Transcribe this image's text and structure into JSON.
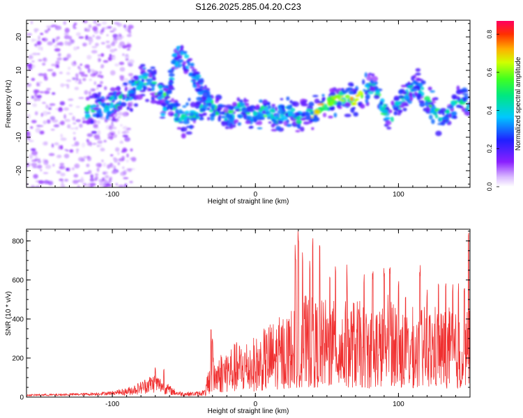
{
  "title": "S126.2025.285.04.20.C23",
  "colors": {
    "snr_line": "#f03030",
    "frame": "#000000",
    "spec_bg": "#ffffff"
  },
  "chart_data": [
    {
      "type": "heatmap",
      "name": "spectrogram",
      "title": "S126.2025.285.04.20.C23",
      "xlabel": "Height of straight line (km)",
      "ylabel": "Frequency (Hz)",
      "xlim": [
        -160,
        150
      ],
      "ylim": [
        -25,
        25
      ],
      "xticks": [
        -100,
        0,
        100
      ],
      "xtick_labels": [
        "-100",
        "0",
        "100"
      ],
      "yticks": [
        -20,
        -10,
        0,
        10,
        20
      ],
      "ytick_labels": [
        "-20",
        "-10",
        "0",
        "10",
        "20"
      ],
      "ridge_x": [
        -115,
        -105,
        -95,
        -85,
        -78,
        -72,
        -66,
        -60,
        -55,
        -50,
        -45,
        -40,
        -35,
        -30,
        -25,
        -20,
        -15,
        -10,
        -5,
        0,
        5,
        10,
        15,
        20,
        25,
        30,
        35,
        40,
        45,
        50,
        55,
        60,
        65,
        70,
        75,
        80,
        85,
        90,
        95,
        100,
        105,
        110,
        115,
        120,
        125,
        130,
        135,
        140,
        145,
        150
      ],
      "ridge_y": [
        -2,
        -1,
        1,
        4,
        7,
        6,
        3,
        0,
        -3,
        -5,
        -4,
        -2,
        0,
        -1,
        -2,
        -4,
        -3,
        -1,
        -3,
        -4,
        -2,
        -3,
        -4,
        -3,
        -2,
        -4,
        -2,
        -3,
        -1,
        0,
        1,
        2,
        2,
        1,
        3,
        5,
        4,
        -2,
        -4,
        0,
        3,
        6,
        5,
        1,
        -2,
        -5,
        -3,
        0,
        2,
        -2
      ],
      "upper_branch_x": [
        -65,
        -60,
        -56,
        -52,
        -48,
        -44,
        -40,
        -36,
        -32
      ],
      "upper_branch_y": [
        -2,
        5,
        13,
        15,
        12,
        9,
        6,
        3,
        1
      ],
      "colorbar": {
        "label": "Normalized spectral amplitude",
        "range": [
          0,
          0.87
        ],
        "ticks": [
          0.0,
          0.2,
          0.4,
          0.6,
          0.8
        ],
        "tick_labels": [
          "0.0",
          "0.2",
          "0.4",
          "0.6",
          "0.8"
        ]
      }
    },
    {
      "type": "line",
      "name": "snr",
      "xlabel": "Height of straight line (km)",
      "ylabel": "SNR (10 * v/v)",
      "xlim": [
        -160,
        150
      ],
      "ylim": [
        0,
        860
      ],
      "xticks": [
        -100,
        0,
        100
      ],
      "xtick_labels": [
        "-100",
        "0",
        "100"
      ],
      "yticks": [
        0,
        200,
        400,
        600,
        800
      ],
      "ytick_labels": [
        "0",
        "200",
        "400",
        "600",
        "800"
      ],
      "x": [
        -160,
        -150,
        -140,
        -130,
        -120,
        -110,
        -100,
        -90,
        -80,
        -75,
        -70,
        -65,
        -60,
        -55,
        -50,
        -45,
        -40,
        -35,
        -33,
        -30,
        -25,
        -20,
        -15,
        -10,
        -5,
        0,
        5,
        10,
        15,
        20,
        25,
        30,
        35,
        40,
        45,
        50,
        55,
        60,
        65,
        70,
        75,
        80,
        85,
        90,
        95,
        100,
        105,
        110,
        115,
        120,
        125,
        130,
        135,
        140,
        145,
        150
      ],
      "baseline": [
        10,
        12,
        12,
        14,
        15,
        18,
        22,
        35,
        60,
        80,
        90,
        70,
        45,
        25,
        20,
        20,
        22,
        30,
        90,
        130,
        150,
        170,
        180,
        190,
        200,
        200,
        220,
        250,
        260,
        280,
        300,
        330,
        340,
        330,
        320,
        330,
        320,
        320,
        320,
        330,
        310,
        300,
        320,
        300,
        380,
        300,
        290,
        300,
        300,
        300,
        310,
        300,
        300,
        280,
        260,
        300
      ],
      "peaks_x": [
        -70,
        -64,
        -31,
        -30,
        28,
        30,
        33,
        38,
        40,
        45,
        52,
        56,
        64,
        76,
        82,
        90,
        94,
        100,
        105,
        115,
        120,
        128,
        133,
        138,
        142,
        146,
        149
      ],
      "peaks_y": [
        155,
        150,
        380,
        300,
        780,
        850,
        740,
        720,
        860,
        800,
        650,
        700,
        680,
        640,
        660,
        670,
        700,
        620,
        560,
        680,
        560,
        600,
        590,
        600,
        590,
        560,
        860
      ]
    }
  ]
}
